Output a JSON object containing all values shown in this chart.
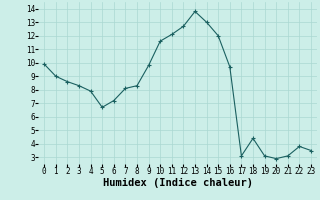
{
  "x": [
    0,
    1,
    2,
    3,
    4,
    5,
    6,
    7,
    8,
    9,
    10,
    11,
    12,
    13,
    14,
    15,
    16,
    17,
    18,
    19,
    20,
    21,
    22,
    23
  ],
  "y": [
    9.9,
    9.0,
    8.6,
    8.3,
    7.9,
    6.7,
    7.2,
    8.1,
    8.3,
    9.8,
    11.6,
    12.1,
    12.7,
    13.8,
    13.0,
    12.0,
    9.7,
    3.1,
    4.4,
    3.1,
    2.9,
    3.1,
    3.8,
    3.5
  ],
  "line_color": "#1a6060",
  "marker": "+",
  "marker_size": 3,
  "bg_color": "#cceee8",
  "grid_color": "#aad8d2",
  "xlabel": "Humidex (Indice chaleur)",
  "xlim": [
    -0.5,
    23.5
  ],
  "ylim": [
    2.5,
    14.5
  ],
  "yticks": [
    3,
    4,
    5,
    6,
    7,
    8,
    9,
    10,
    11,
    12,
    13,
    14
  ],
  "xticks": [
    0,
    1,
    2,
    3,
    4,
    5,
    6,
    7,
    8,
    9,
    10,
    11,
    12,
    13,
    14,
    15,
    16,
    17,
    18,
    19,
    20,
    21,
    22,
    23
  ],
  "xtick_labels": [
    "0",
    "1",
    "2",
    "3",
    "4",
    "5",
    "6",
    "7",
    "8",
    "9",
    "10",
    "11",
    "12",
    "13",
    "14",
    "15",
    "16",
    "17",
    "18",
    "19",
    "20",
    "21",
    "22",
    "23"
  ],
  "tick_fontsize": 5.5,
  "xlabel_fontsize": 7.5
}
